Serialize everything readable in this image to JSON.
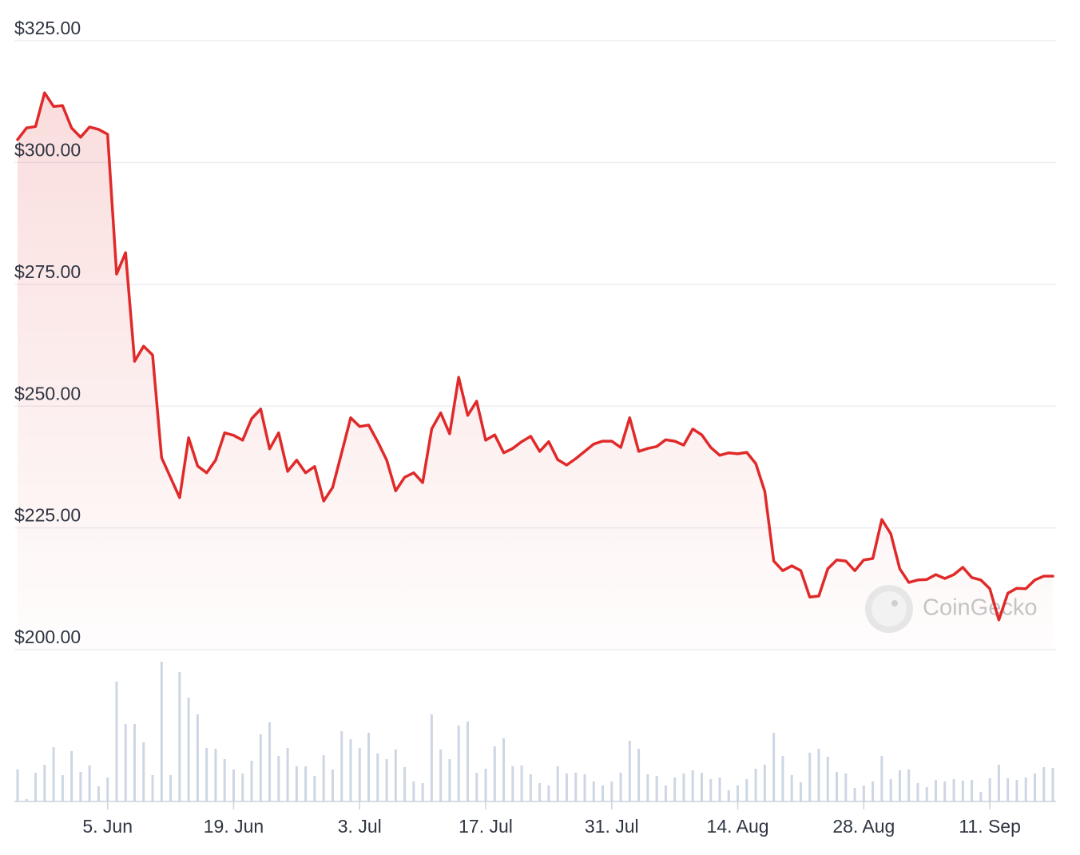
{
  "chart_data": {
    "type": "line",
    "categories": [
      null,
      null,
      null,
      null,
      null,
      null,
      null,
      null,
      null,
      null,
      "5. Jun",
      null,
      null,
      null,
      null,
      null,
      null,
      null,
      null,
      null,
      null,
      null,
      null,
      null,
      "19. Jun",
      null,
      null,
      null,
      null,
      null,
      null,
      null,
      null,
      null,
      null,
      null,
      null,
      null,
      "3. Jul",
      null,
      null,
      null,
      null,
      null,
      null,
      null,
      null,
      null,
      null,
      null,
      null,
      null,
      "17. Jul",
      null,
      null,
      null,
      null,
      null,
      null,
      null,
      null,
      null,
      null,
      null,
      null,
      null,
      "31. Jul",
      null,
      null,
      null,
      null,
      null,
      null,
      null,
      null,
      null,
      null,
      null,
      null,
      null,
      "14. Aug",
      null,
      null,
      null,
      null,
      null,
      null,
      null,
      null,
      null,
      null,
      null,
      null,
      null,
      "28. Aug",
      null,
      null,
      null,
      null,
      null,
      null,
      null,
      null,
      null,
      null,
      null,
      null,
      null,
      "11. Sep",
      null,
      null,
      null,
      null,
      null,
      null,
      null
    ],
    "values": [
      304.7,
      307.1,
      307.4,
      314.3,
      311.5,
      311.7,
      307.1,
      305.2,
      307.3,
      306.8,
      305.8,
      277.1,
      281.5,
      259.2,
      262.3,
      260.5,
      239.4,
      235.3,
      231.2,
      243.5,
      237.7,
      236.3,
      238.9,
      244.5,
      244.0,
      243.0,
      247.4,
      249.4,
      241.2,
      244.5,
      236.6,
      238.9,
      236.3,
      237.6,
      230.5,
      233.3,
      240.4,
      247.6,
      245.8,
      246.1,
      242.7,
      238.9,
      232.6,
      235.4,
      236.3,
      234.3,
      245.3,
      248.6,
      244.3,
      255.9,
      248.1,
      251.0,
      243.0,
      244.1,
      240.4,
      241.3,
      242.7,
      243.8,
      240.7,
      242.7,
      239.0,
      237.9,
      239.2,
      240.7,
      242.2,
      242.8,
      242.8,
      241.5,
      247.6,
      240.7,
      241.3,
      241.7,
      243.1,
      242.8,
      242.0,
      245.3,
      244.1,
      241.5,
      239.9,
      240.4,
      240.2,
      240.5,
      238.2,
      232.5,
      218.2,
      216.2,
      217.2,
      216.2,
      210.8,
      211.0,
      216.6,
      218.4,
      218.2,
      216.2,
      218.4,
      218.7,
      226.7,
      223.8,
      216.6,
      213.8,
      214.3,
      214.4,
      215.4,
      214.6,
      215.4,
      216.9,
      214.8,
      214.3,
      212.5,
      206.1,
      211.6,
      212.6,
      212.5,
      214.3,
      215.1,
      215.1
    ],
    "color": "#e02a2a",
    "volume": {
      "color": "#cdd6e4",
      "values": [
        40,
        3,
        36,
        46,
        68,
        33,
        63,
        37,
        45,
        19,
        30,
        150,
        97,
        97,
        74,
        33,
        175,
        33,
        162,
        130,
        109,
        67,
        66,
        53,
        40,
        35,
        51,
        84,
        99,
        57,
        67,
        44,
        44,
        32,
        58,
        40,
        88,
        78,
        67,
        86,
        60,
        53,
        65,
        43,
        25,
        23,
        109,
        65,
        53,
        95,
        100,
        36,
        41,
        69,
        79,
        44,
        45,
        34,
        23,
        20,
        44,
        35,
        36,
        34,
        25,
        20,
        25,
        36,
        76,
        66,
        34,
        32,
        20,
        30,
        35,
        39,
        36,
        28,
        30,
        14,
        20,
        28,
        41,
        46,
        86,
        57,
        33,
        24,
        61,
        66,
        56,
        37,
        35,
        17,
        20,
        25,
        57,
        28,
        39,
        40,
        23,
        18,
        27,
        25,
        28,
        26,
        27,
        12,
        29,
        46,
        29,
        27,
        30,
        35,
        43,
        42
      ]
    },
    "ylim": [
      200,
      325
    ],
    "yticks": [
      {
        "value": 200,
        "label": "$200.00"
      },
      {
        "value": 225,
        "label": "$225.00"
      },
      {
        "value": 250,
        "label": "$250.00"
      },
      {
        "value": 275,
        "label": "$275.00"
      },
      {
        "value": 300,
        "label": "$300.00"
      },
      {
        "value": 325,
        "label": "$325.00"
      }
    ],
    "grid": true,
    "watermark": "CoinGecko"
  }
}
